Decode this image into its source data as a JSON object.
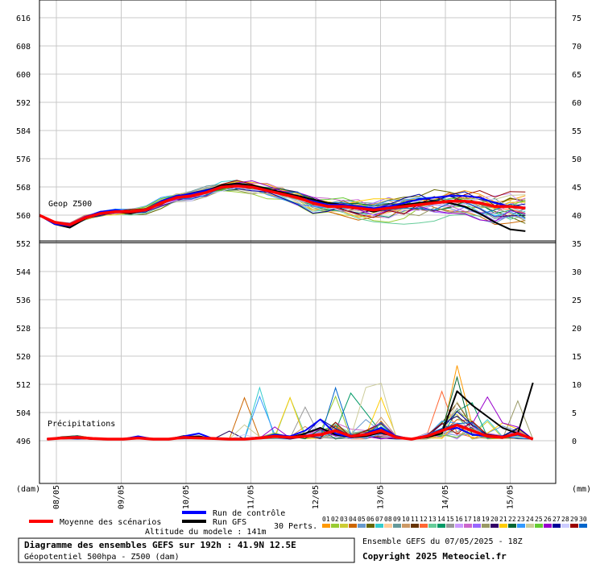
{
  "chart_data": {
    "type": "line",
    "title": "Diagramme des ensembles GEFS sur 192h : 41.9N 12.5E",
    "subtitle": "Géopotentiel 500hpa - Z500 (dam)",
    "altitude_text": "Altitude du modele : 141m",
    "run_text": "Ensemble GEFS du 07/05/2025 - 18Z",
    "copyright": "Copyright 2025 Meteociel.fr",
    "upper_label": "Geop Z500",
    "lower_label": "Précipitations",
    "left_unit": "(dam)",
    "right_unit": "(mm)",
    "left_ticks": [
      "616",
      "608",
      "600",
      "592",
      "584",
      "576",
      "568",
      "560",
      "552",
      "544",
      "536",
      "528",
      "520",
      "512",
      "504",
      "496"
    ],
    "right_ticks": [
      "75",
      "70",
      "65",
      "60",
      "55",
      "50",
      "45",
      "40",
      "35",
      "30",
      "25",
      "20",
      "15",
      "10",
      "5",
      "0"
    ],
    "x_ticks": [
      "08/05",
      "09/05",
      "10/05",
      "11/05",
      "12/05",
      "13/05",
      "14/05",
      "15/05"
    ],
    "z500": {
      "ylim": [
        552,
        616
      ],
      "x_hours": [
        0,
        6,
        12,
        18,
        24,
        30,
        36,
        42,
        48,
        54,
        60,
        66,
        72,
        78,
        84,
        90,
        96,
        102,
        108,
        114,
        120,
        126,
        132,
        138,
        144,
        150,
        156,
        162,
        168,
        174,
        180,
        186,
        192
      ],
      "mean": [
        559.5,
        557.5,
        556.8,
        558.8,
        560,
        560.5,
        560.5,
        561,
        563,
        564.5,
        565,
        566,
        567.5,
        567.8,
        567.5,
        566.5,
        565.5,
        564.5,
        563,
        562,
        562,
        561.5,
        561,
        561.5,
        562,
        562.5,
        563,
        563.5,
        563.5,
        563,
        562,
        562,
        561.5
      ],
      "control": [
        559.5,
        557,
        556.5,
        559,
        560.5,
        561,
        560.5,
        561,
        563.5,
        565,
        565.5,
        566.5,
        567.5,
        568,
        567.5,
        566.5,
        565.5,
        564.5,
        563.5,
        562.5,
        562.5,
        562,
        561.5,
        562,
        563,
        564,
        564.5,
        565,
        565,
        564.5,
        563,
        562,
        561.5
      ],
      "gfs": [
        559.5,
        557,
        556,
        558.5,
        560,
        560.5,
        560,
        561,
        563,
        564.5,
        565,
        566.5,
        568,
        568.5,
        568,
        567,
        566,
        565,
        564,
        563,
        562.5,
        561.5,
        560.5,
        561.5,
        562.5,
        563,
        563.5,
        563,
        562,
        560,
        557.5,
        555.5,
        555
      ]
    },
    "precip": {
      "ylim": [
        0,
        35
      ],
      "x_hours": [
        0,
        6,
        12,
        18,
        24,
        30,
        36,
        42,
        48,
        54,
        60,
        66,
        72,
        78,
        84,
        90,
        96,
        102,
        108,
        114,
        120,
        126,
        132,
        138,
        144,
        150,
        156,
        162,
        168,
        174,
        180,
        186,
        192
      ],
      "mean": [
        0,
        0.2,
        0.3,
        0.1,
        0,
        0,
        0.2,
        0,
        0,
        0.3,
        0.2,
        0.1,
        0,
        0,
        0.2,
        0.5,
        0.3,
        0.5,
        0.8,
        1.5,
        0.5,
        0.8,
        1.5,
        0.3,
        0,
        0.5,
        1.5,
        2.5,
        1.5,
        0.5,
        0.3,
        1.0,
        0
      ],
      "control": [
        0,
        0.2,
        0.4,
        0,
        0,
        0,
        0.5,
        0,
        0,
        0.5,
        1.0,
        0,
        0,
        0,
        0.2,
        0.8,
        0.5,
        1.5,
        3.5,
        1.0,
        0.3,
        1.0,
        2.0,
        0.5,
        0,
        0.5,
        1.5,
        2.0,
        0.8,
        0.5,
        0.3,
        0.8,
        0
      ],
      "gfs": [
        0,
        0.1,
        0.2,
        0,
        0,
        0,
        0.3,
        0,
        0,
        0.4,
        0.5,
        0,
        0,
        0,
        0.3,
        0.5,
        0.3,
        1.0,
        2.0,
        0.8,
        0.3,
        0.5,
        1.2,
        0.3,
        0,
        0.3,
        1.0,
        8.5,
        6.0,
        4.0,
        2.0,
        1.0,
        10.0
      ]
    }
  },
  "legend": {
    "mean": "Moyenne des scénarios",
    "control": "Run de contrôle",
    "gfs": "Run GFS",
    "perts": "30 Perts.",
    "pert_numbers": [
      "01",
      "02",
      "03",
      "04",
      "05",
      "06",
      "07",
      "08",
      "09",
      "10",
      "11",
      "12",
      "13",
      "14",
      "15",
      "16",
      "17",
      "18",
      "19",
      "20",
      "21",
      "22",
      "23",
      "24",
      "25",
      "26",
      "27",
      "28",
      "29",
      "30"
    ],
    "colors": {
      "mean": "#ff0000",
      "control": "#0000ff",
      "gfs": "#000000"
    },
    "pert_colors": [
      "#ff9900",
      "#99cc33",
      "#cccc33",
      "#cc6600",
      "#6699cc",
      "#666600",
      "#33cccc",
      "#ffcc99",
      "#669999",
      "#cc9966",
      "#663300",
      "#ff6633",
      "#66cc99",
      "#009966",
      "#999999",
      "#cc99ff",
      "#cc66cc",
      "#9966ff",
      "#999966",
      "#330066",
      "#ffcc00",
      "#006633",
      "#3399ff",
      "#cccc99",
      "#66cc33",
      "#9900cc",
      "#000099",
      "#ccccff",
      "#990000",
      "#0066cc"
    ]
  }
}
